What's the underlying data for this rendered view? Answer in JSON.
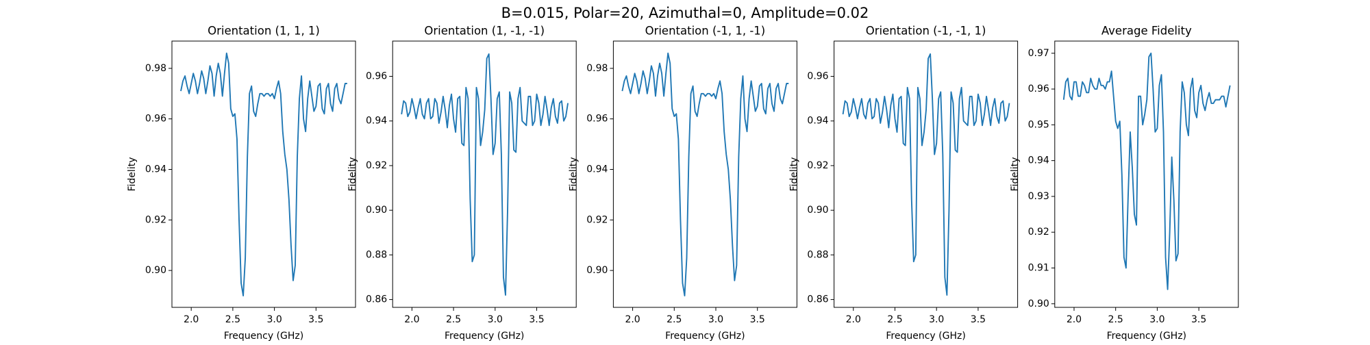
{
  "title": "B=0.015, Polar=20, Azimuthal=0, Amplitude=0.02",
  "chart_data": [
    {
      "type": "line",
      "title": "Orientation (1, 1, 1)",
      "xlabel": "Frequency (GHz)",
      "ylabel": "Fidelity",
      "xlim": [
        1.768,
        3.975
      ],
      "ylim": [
        0.8854,
        0.9908
      ],
      "xticks": [
        {
          "value": 2,
          "label": "2.0"
        },
        2.5,
        {
          "value": 3,
          "label": "3.0"
        },
        3.5
      ],
      "yticks": [
        {
          "value": 0.9,
          "label": "0.90"
        },
        0.92,
        0.94,
        0.96,
        0.98
      ],
      "x": [
        1.875,
        1.9,
        1.925,
        1.95,
        1.975,
        2.0,
        2.025,
        2.05,
        2.075,
        2.1,
        2.125,
        2.15,
        2.175,
        2.2,
        2.225,
        2.25,
        2.275,
        2.3,
        2.325,
        2.35,
        2.375,
        2.4,
        2.425,
        2.45,
        2.475,
        2.5,
        2.525,
        2.55,
        2.575,
        2.6,
        2.625,
        2.65,
        2.675,
        2.7,
        2.725,
        2.75,
        2.775,
        2.8,
        2.825,
        2.85,
        2.875,
        2.9,
        2.925,
        2.95,
        2.975,
        3.0,
        3.025,
        3.05,
        3.075,
        3.1,
        3.125,
        3.15,
        3.175,
        3.2,
        3.225,
        3.25,
        3.275,
        3.3,
        3.325,
        3.35,
        3.375,
        3.4,
        3.425,
        3.45,
        3.475,
        3.5,
        3.525,
        3.55,
        3.575,
        3.6,
        3.625,
        3.65,
        3.675,
        3.7,
        3.725,
        3.75,
        3.775,
        3.8,
        3.825,
        3.85,
        3.875
      ],
      "series": [
        {
          "color": "#1f77b4",
          "values": [
            0.971,
            0.975,
            0.977,
            0.973,
            0.97,
            0.974,
            0.978,
            0.975,
            0.97,
            0.974,
            0.979,
            0.976,
            0.97,
            0.975,
            0.981,
            0.978,
            0.969,
            0.977,
            0.982,
            0.978,
            0.969,
            0.978,
            0.986,
            0.982,
            0.964,
            0.961,
            0.962,
            0.952,
            0.92,
            0.895,
            0.89,
            0.905,
            0.945,
            0.97,
            0.973,
            0.963,
            0.961,
            0.966,
            0.97,
            0.97,
            0.969,
            0.97,
            0.97,
            0.969,
            0.97,
            0.968,
            0.972,
            0.975,
            0.97,
            0.955,
            0.946,
            0.94,
            0.928,
            0.91,
            0.896,
            0.902,
            0.945,
            0.968,
            0.977,
            0.96,
            0.955,
            0.968,
            0.975,
            0.969,
            0.963,
            0.965,
            0.973,
            0.974,
            0.964,
            0.962,
            0.972,
            0.974,
            0.966,
            0.963,
            0.972,
            0.974,
            0.968,
            0.966,
            0.97,
            0.974,
            0.974
          ]
        }
      ]
    },
    {
      "type": "line",
      "title": "Orientation (1, -1, -1)",
      "xlabel": "Frequency (GHz)",
      "ylabel": "Fidelity",
      "xlim": [
        1.768,
        3.975
      ],
      "ylim": [
        0.8565,
        0.9758
      ],
      "xticks": [
        {
          "value": 2,
          "label": "2.0"
        },
        2.5,
        {
          "value": 3,
          "label": "3.0"
        },
        3.5
      ],
      "yticks": [
        0.86,
        0.88,
        {
          "value": 0.9,
          "label": "0.90"
        },
        0.92,
        0.94,
        0.96
      ],
      "x": [
        1.875,
        1.9,
        1.925,
        1.95,
        1.975,
        2.0,
        2.025,
        2.05,
        2.075,
        2.1,
        2.125,
        2.15,
        2.175,
        2.2,
        2.225,
        2.25,
        2.275,
        2.3,
        2.325,
        2.35,
        2.375,
        2.4,
        2.425,
        2.45,
        2.475,
        2.5,
        2.525,
        2.55,
        2.575,
        2.6,
        2.625,
        2.65,
        2.675,
        2.7,
        2.725,
        2.75,
        2.775,
        2.8,
        2.825,
        2.85,
        2.875,
        2.9,
        2.925,
        2.95,
        2.975,
        3.0,
        3.025,
        3.05,
        3.075,
        3.1,
        3.125,
        3.15,
        3.175,
        3.2,
        3.225,
        3.25,
        3.275,
        3.3,
        3.325,
        3.35,
        3.375,
        3.4,
        3.425,
        3.45,
        3.475,
        3.5,
        3.525,
        3.55,
        3.575,
        3.6,
        3.625,
        3.65,
        3.675,
        3.7,
        3.725,
        3.75,
        3.775,
        3.8,
        3.825,
        3.85,
        3.875
      ],
      "series": [
        {
          "color": "#1f77b4",
          "values": [
            0.943,
            0.949,
            0.948,
            0.942,
            0.944,
            0.95,
            0.946,
            0.941,
            0.946,
            0.95,
            0.943,
            0.941,
            0.948,
            0.95,
            0.941,
            0.942,
            0.95,
            0.948,
            0.939,
            0.944,
            0.951,
            0.945,
            0.937,
            0.947,
            0.952,
            0.941,
            0.935,
            0.95,
            0.951,
            0.93,
            0.929,
            0.955,
            0.95,
            0.905,
            0.877,
            0.88,
            0.955,
            0.95,
            0.929,
            0.935,
            0.945,
            0.968,
            0.97,
            0.95,
            0.925,
            0.93,
            0.95,
            0.953,
            0.925,
            0.87,
            0.862,
            0.9,
            0.953,
            0.948,
            0.927,
            0.926,
            0.95,
            0.955,
            0.94,
            0.939,
            0.938,
            0.951,
            0.951,
            0.938,
            0.94,
            0.952,
            0.948,
            0.938,
            0.943,
            0.951,
            0.945,
            0.938,
            0.946,
            0.95,
            0.942,
            0.939,
            0.948,
            0.949,
            0.94,
            0.942,
            0.948
          ]
        }
      ]
    },
    {
      "type": "line",
      "title": "Orientation (-1, 1, -1)",
      "xlabel": "Frequency (GHz)",
      "ylabel": "Fidelity",
      "xlim": [
        1.768,
        3.975
      ],
      "ylim": [
        0.8854,
        0.9908
      ],
      "xticks": [
        {
          "value": 2,
          "label": "2.0"
        },
        2.5,
        {
          "value": 3,
          "label": "3.0"
        },
        3.5
      ],
      "yticks": [
        {
          "value": 0.9,
          "label": "0.90"
        },
        0.92,
        0.94,
        0.96,
        0.98
      ],
      "x": [
        1.875,
        1.9,
        1.925,
        1.95,
        1.975,
        2.0,
        2.025,
        2.05,
        2.075,
        2.1,
        2.125,
        2.15,
        2.175,
        2.2,
        2.225,
        2.25,
        2.275,
        2.3,
        2.325,
        2.35,
        2.375,
        2.4,
        2.425,
        2.45,
        2.475,
        2.5,
        2.525,
        2.55,
        2.575,
        2.6,
        2.625,
        2.65,
        2.675,
        2.7,
        2.725,
        2.75,
        2.775,
        2.8,
        2.825,
        2.85,
        2.875,
        2.9,
        2.925,
        2.95,
        2.975,
        3.0,
        3.025,
        3.05,
        3.075,
        3.1,
        3.125,
        3.15,
        3.175,
        3.2,
        3.225,
        3.25,
        3.275,
        3.3,
        3.325,
        3.35,
        3.375,
        3.4,
        3.425,
        3.45,
        3.475,
        3.5,
        3.525,
        3.55,
        3.575,
        3.6,
        3.625,
        3.65,
        3.675,
        3.7,
        3.725,
        3.75,
        3.775,
        3.8,
        3.825,
        3.85,
        3.875
      ],
      "series": [
        {
          "color": "#1f77b4",
          "values": [
            0.971,
            0.975,
            0.977,
            0.973,
            0.97,
            0.974,
            0.978,
            0.975,
            0.97,
            0.974,
            0.979,
            0.976,
            0.97,
            0.975,
            0.981,
            0.978,
            0.969,
            0.977,
            0.982,
            0.978,
            0.969,
            0.978,
            0.986,
            0.982,
            0.964,
            0.961,
            0.962,
            0.952,
            0.92,
            0.895,
            0.89,
            0.905,
            0.945,
            0.97,
            0.973,
            0.963,
            0.961,
            0.966,
            0.97,
            0.97,
            0.969,
            0.97,
            0.97,
            0.969,
            0.97,
            0.968,
            0.972,
            0.975,
            0.97,
            0.955,
            0.946,
            0.94,
            0.928,
            0.91,
            0.896,
            0.902,
            0.945,
            0.968,
            0.977,
            0.96,
            0.955,
            0.968,
            0.975,
            0.969,
            0.963,
            0.965,
            0.973,
            0.974,
            0.964,
            0.962,
            0.972,
            0.974,
            0.966,
            0.963,
            0.972,
            0.974,
            0.968,
            0.966,
            0.97,
            0.974,
            0.974
          ]
        }
      ]
    },
    {
      "type": "line",
      "title": "Orientation (-1, -1, 1)",
      "xlabel": "Frequency (GHz)",
      "ylabel": "Fidelity",
      "xlim": [
        1.768,
        3.975
      ],
      "ylim": [
        0.8565,
        0.9758
      ],
      "xticks": [
        {
          "value": 2,
          "label": "2.0"
        },
        2.5,
        {
          "value": 3,
          "label": "3.0"
        },
        3.5
      ],
      "yticks": [
        0.86,
        0.88,
        {
          "value": 0.9,
          "label": "0.90"
        },
        0.92,
        0.94,
        0.96
      ],
      "x": [
        1.875,
        1.9,
        1.925,
        1.95,
        1.975,
        2.0,
        2.025,
        2.05,
        2.075,
        2.1,
        2.125,
        2.15,
        2.175,
        2.2,
        2.225,
        2.25,
        2.275,
        2.3,
        2.325,
        2.35,
        2.375,
        2.4,
        2.425,
        2.45,
        2.475,
        2.5,
        2.525,
        2.55,
        2.575,
        2.6,
        2.625,
        2.65,
        2.675,
        2.7,
        2.725,
        2.75,
        2.775,
        2.8,
        2.825,
        2.85,
        2.875,
        2.9,
        2.925,
        2.95,
        2.975,
        3.0,
        3.025,
        3.05,
        3.075,
        3.1,
        3.125,
        3.15,
        3.175,
        3.2,
        3.225,
        3.25,
        3.275,
        3.3,
        3.325,
        3.35,
        3.375,
        3.4,
        3.425,
        3.45,
        3.475,
        3.5,
        3.525,
        3.55,
        3.575,
        3.6,
        3.625,
        3.65,
        3.675,
        3.7,
        3.725,
        3.75,
        3.775,
        3.8,
        3.825,
        3.85,
        3.875
      ],
      "series": [
        {
          "color": "#1f77b4",
          "values": [
            0.943,
            0.949,
            0.948,
            0.942,
            0.944,
            0.95,
            0.946,
            0.941,
            0.946,
            0.95,
            0.943,
            0.941,
            0.948,
            0.95,
            0.941,
            0.942,
            0.95,
            0.948,
            0.939,
            0.944,
            0.951,
            0.945,
            0.937,
            0.947,
            0.952,
            0.941,
            0.935,
            0.95,
            0.951,
            0.93,
            0.929,
            0.955,
            0.95,
            0.905,
            0.877,
            0.88,
            0.955,
            0.95,
            0.929,
            0.935,
            0.945,
            0.968,
            0.97,
            0.95,
            0.925,
            0.93,
            0.95,
            0.953,
            0.925,
            0.87,
            0.862,
            0.9,
            0.953,
            0.948,
            0.927,
            0.926,
            0.95,
            0.955,
            0.94,
            0.939,
            0.938,
            0.951,
            0.951,
            0.938,
            0.94,
            0.952,
            0.948,
            0.938,
            0.943,
            0.951,
            0.945,
            0.938,
            0.946,
            0.95,
            0.942,
            0.939,
            0.948,
            0.949,
            0.94,
            0.942,
            0.948
          ]
        }
      ]
    },
    {
      "type": "line",
      "title": "Average Fidelity",
      "xlabel": "Frequency (GHz)",
      "ylabel": "Fidelity",
      "xlim": [
        1.768,
        3.975
      ],
      "ylim": [
        0.899,
        0.9734
      ],
      "xticks": [
        {
          "value": 2,
          "label": "2.0"
        },
        2.5,
        {
          "value": 3,
          "label": "3.0"
        },
        3.5
      ],
      "yticks": [
        {
          "value": 0.9,
          "label": "0.90"
        },
        0.91,
        0.92,
        0.93,
        0.94,
        0.95,
        0.96,
        0.97
      ],
      "x": [
        1.875,
        1.9,
        1.925,
        1.95,
        1.975,
        2.0,
        2.025,
        2.05,
        2.075,
        2.1,
        2.125,
        2.15,
        2.175,
        2.2,
        2.225,
        2.25,
        2.275,
        2.3,
        2.325,
        2.35,
        2.375,
        2.4,
        2.425,
        2.45,
        2.475,
        2.5,
        2.525,
        2.55,
        2.575,
        2.6,
        2.625,
        2.65,
        2.675,
        2.7,
        2.725,
        2.75,
        2.775,
        2.8,
        2.825,
        2.85,
        2.875,
        2.9,
        2.925,
        2.95,
        2.975,
        3.0,
        3.025,
        3.05,
        3.075,
        3.1,
        3.125,
        3.15,
        3.175,
        3.2,
        3.225,
        3.25,
        3.275,
        3.3,
        3.325,
        3.35,
        3.375,
        3.4,
        3.425,
        3.45,
        3.475,
        3.5,
        3.525,
        3.55,
        3.575,
        3.6,
        3.625,
        3.65,
        3.675,
        3.7,
        3.725,
        3.75,
        3.775,
        3.8,
        3.825,
        3.85,
        3.875
      ],
      "series": [
        {
          "color": "#1f77b4",
          "values": [
            0.957,
            0.962,
            0.963,
            0.958,
            0.957,
            0.962,
            0.962,
            0.958,
            0.958,
            0.962,
            0.961,
            0.959,
            0.959,
            0.963,
            0.961,
            0.96,
            0.96,
            0.963,
            0.961,
            0.961,
            0.96,
            0.962,
            0.962,
            0.965,
            0.958,
            0.951,
            0.949,
            0.951,
            0.936,
            0.913,
            0.91,
            0.93,
            0.948,
            0.938,
            0.925,
            0.922,
            0.958,
            0.958,
            0.95,
            0.953,
            0.957,
            0.969,
            0.97,
            0.96,
            0.948,
            0.949,
            0.961,
            0.964,
            0.948,
            0.913,
            0.904,
            0.92,
            0.941,
            0.929,
            0.912,
            0.914,
            0.948,
            0.962,
            0.959,
            0.95,
            0.947,
            0.96,
            0.963,
            0.954,
            0.952,
            0.959,
            0.961,
            0.956,
            0.954,
            0.957,
            0.959,
            0.956,
            0.956,
            0.957,
            0.957,
            0.957,
            0.958,
            0.958,
            0.955,
            0.958,
            0.961
          ]
        }
      ]
    }
  ]
}
